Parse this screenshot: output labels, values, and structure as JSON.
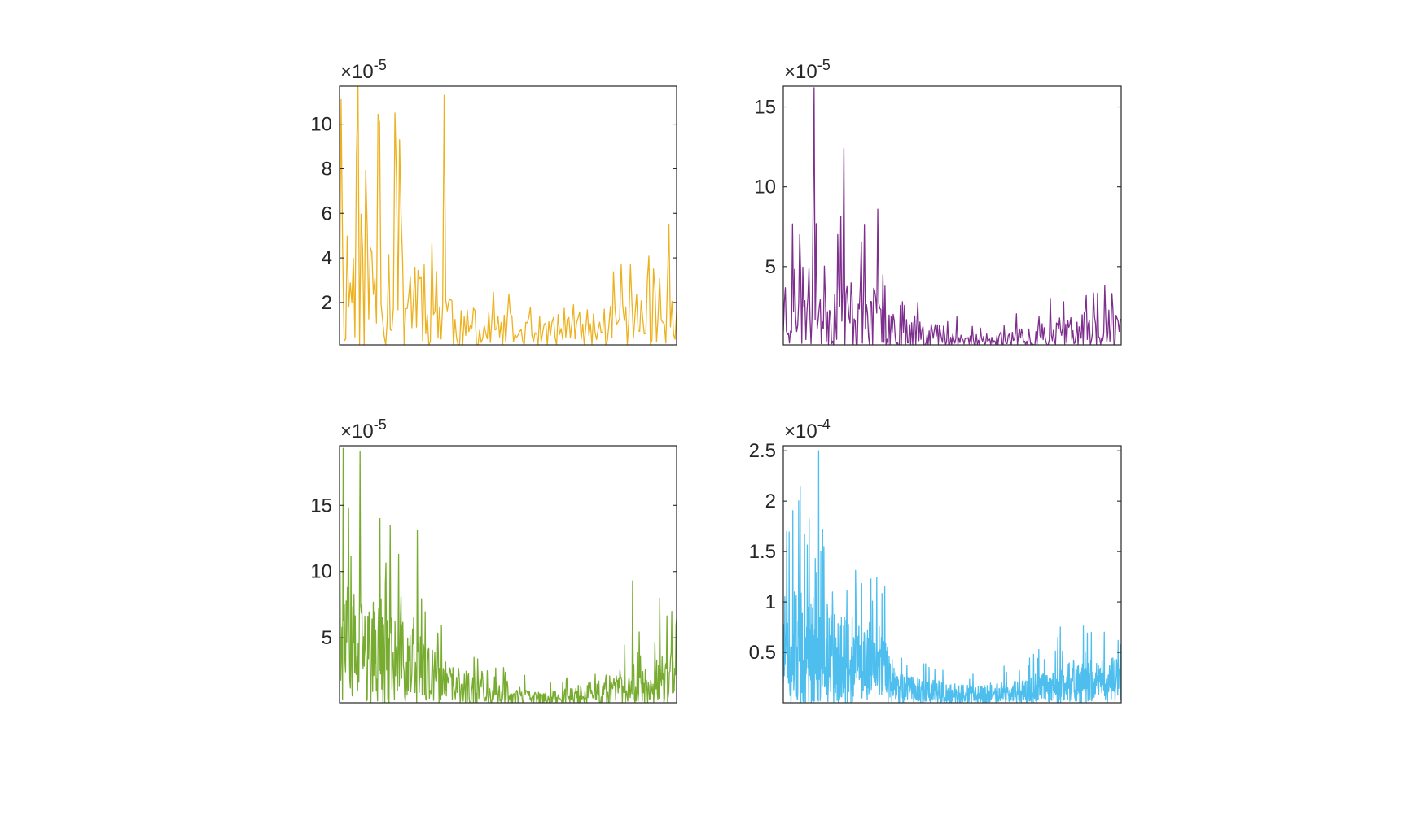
{
  "figure": {
    "layout": "2x2 subplots"
  },
  "chart_data": [
    {
      "type": "line",
      "color": "#EDB120",
      "multiplier_label": "×10",
      "exponent_label": "-5",
      "ylim": [
        0.1,
        11.7
      ],
      "yticks": [
        2,
        4,
        6,
        8,
        10
      ],
      "yticklabels": [
        "2",
        "4",
        "6",
        "8",
        "10"
      ],
      "xlim": [
        0,
        1
      ],
      "xticks": [],
      "n_points": 220,
      "peaks": [
        [
          0.005,
          11.1
        ],
        [
          0.055,
          11.7
        ],
        [
          0.18,
          9.3
        ],
        [
          0.165,
          10.5
        ],
        [
          0.31,
          11.3
        ],
        [
          0.975,
          5.5
        ],
        [
          0.93,
          3.5
        ],
        [
          0.835,
          3.7
        ]
      ],
      "envelope": [
        [
          0,
          6
        ],
        [
          0.25,
          5
        ],
        [
          0.32,
          3.5
        ],
        [
          0.35,
          1.5
        ],
        [
          0.6,
          1.2
        ],
        [
          0.75,
          1.5
        ],
        [
          0.85,
          2.2
        ],
        [
          1,
          2.2
        ]
      ],
      "seed": 11
    },
    {
      "type": "line",
      "color": "#7E2F8E",
      "multiplier_label": "×10",
      "exponent_label": "-5",
      "ylim": [
        0.1,
        16.3
      ],
      "yticks": [
        5,
        10,
        15
      ],
      "yticklabels": [
        "5",
        "10",
        "15"
      ],
      "xlim": [
        0,
        1
      ],
      "xticks": [],
      "n_points": 330,
      "peaks": [
        [
          0.09,
          14.2
        ],
        [
          0.09,
          16.2
        ],
        [
          0.18,
          12.4
        ],
        [
          0.28,
          8.6
        ],
        [
          0.24,
          7.6
        ],
        [
          0.05,
          7.0
        ],
        [
          0.95,
          3.8
        ],
        [
          0.83,
          2.8
        ]
      ],
      "envelope": [
        [
          0,
          5
        ],
        [
          0.2,
          4
        ],
        [
          0.35,
          2.5
        ],
        [
          0.5,
          1.0
        ],
        [
          0.6,
          0.6
        ],
        [
          0.75,
          1.3
        ],
        [
          0.9,
          2.0
        ],
        [
          1,
          2.0
        ]
      ],
      "seed": 23
    },
    {
      "type": "line",
      "color": "#77AC30",
      "multiplier_label": "×10",
      "exponent_label": "-5",
      "ylim": [
        0.1,
        19.5
      ],
      "yticks": [
        5,
        10,
        15
      ],
      "yticklabels": [
        "5",
        "10",
        "15"
      ],
      "xlim": [
        0,
        1
      ],
      "xticks": [],
      "n_points": 560,
      "peaks": [
        [
          0.01,
          19.3
        ],
        [
          0.06,
          19.1
        ],
        [
          0.12,
          14.0
        ],
        [
          0.15,
          13.5
        ],
        [
          0.23,
          13.1
        ],
        [
          0.87,
          9.3
        ],
        [
          0.95,
          8.0
        ],
        [
          0.985,
          7.0
        ]
      ],
      "envelope": [
        [
          0,
          8
        ],
        [
          0.2,
          5.5
        ],
        [
          0.3,
          3.0
        ],
        [
          0.45,
          1.5
        ],
        [
          0.6,
          0.8
        ],
        [
          0.75,
          1.5
        ],
        [
          0.9,
          3.0
        ],
        [
          1,
          3.5
        ]
      ],
      "seed": 37
    },
    {
      "type": "line",
      "color": "#4DBEEE",
      "multiplier_label": "×10",
      "exponent_label": "-4",
      "ylim": [
        0.0,
        2.55
      ],
      "yticks": [
        0.5,
        1,
        1.5,
        2,
        2.5
      ],
      "yticklabels": [
        "0.5",
        "1",
        "1.5",
        "2",
        "2.5"
      ],
      "xlim": [
        0,
        1
      ],
      "xticks": [],
      "n_points": 1100,
      "peaks": [
        [
          0.105,
          2.5
        ],
        [
          0.05,
          2.15
        ],
        [
          0.01,
          1.7
        ],
        [
          0.12,
          1.55
        ],
        [
          0.3,
          1.15
        ],
        [
          0.82,
          0.75
        ],
        [
          0.95,
          0.7
        ]
      ],
      "envelope": [
        [
          0,
          1.0
        ],
        [
          0.15,
          0.85
        ],
        [
          0.3,
          0.55
        ],
        [
          0.34,
          0.25
        ],
        [
          0.55,
          0.15
        ],
        [
          0.7,
          0.2
        ],
        [
          0.85,
          0.35
        ],
        [
          1,
          0.4
        ]
      ],
      "seed": 51
    }
  ]
}
